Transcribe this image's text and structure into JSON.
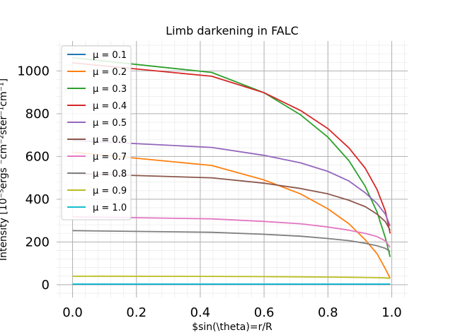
{
  "chart_data": {
    "type": "line",
    "title": "Limb darkening in FALC",
    "xlabel": "$sin(\\theta)=r/R",
    "ylabel": "Intensity [10⁻⁵ergs ⁻cm⁻²ster⁻¹cm⁻¹]",
    "xlim": [
      -0.05,
      1.05
    ],
    "ylim": [
      -60,
      1140
    ],
    "xticks": [
      "0.0",
      "0.2",
      "0.4",
      "0.6",
      "0.8",
      "1.0"
    ],
    "yticks": [
      "0",
      "200",
      "400",
      "600",
      "800",
      "1000"
    ],
    "grid": true,
    "minor_grid": true,
    "legend_position": "upper-left",
    "x": [
      0.0,
      0.436,
      0.6,
      0.714,
      0.8,
      0.866,
      0.917,
      0.954,
      0.98,
      0.995
    ],
    "series": [
      {
        "name": "μ = 0.1",
        "color": "#1f77b4",
        "values": [
          2,
          2,
          2,
          2,
          2,
          2,
          2,
          2,
          2,
          2
        ]
      },
      {
        "name": "μ = 0.2",
        "color": "#ff7f0e",
        "values": [
          620,
          558,
          490,
          425,
          355,
          285,
          210,
          145,
          75,
          30
        ]
      },
      {
        "name": "μ = 0.3",
        "color": "#2ca02c",
        "values": [
          1062,
          993,
          898,
          795,
          690,
          580,
          460,
          340,
          220,
          130
        ]
      },
      {
        "name": "μ = 0.4",
        "color": "#d62728",
        "values": [
          1038,
          975,
          898,
          815,
          730,
          640,
          545,
          445,
          345,
          240
        ]
      },
      {
        "name": "μ = 0.5",
        "color": "#9467bd",
        "values": [
          675,
          642,
          605,
          570,
          530,
          485,
          430,
          380,
          330,
          275
        ]
      },
      {
        "name": "μ = 0.6",
        "color": "#8c564b",
        "values": [
          520,
          500,
          475,
          450,
          425,
          395,
          365,
          330,
          295,
          255
        ]
      },
      {
        "name": "μ = 0.7",
        "color": "#e377c2",
        "values": [
          318,
          308,
          296,
          285,
          270,
          255,
          240,
          225,
          205,
          175
        ]
      },
      {
        "name": "μ = 0.8",
        "color": "#7f7f7f",
        "values": [
          253,
          245,
          236,
          227,
          216,
          206,
          194,
          182,
          170,
          155
        ]
      },
      {
        "name": "μ = 0.9",
        "color": "#bcbd22",
        "values": [
          40,
          39,
          38,
          37,
          36,
          35,
          34,
          33,
          32,
          30
        ]
      },
      {
        "name": "μ = 1.0",
        "color": "#17becf",
        "values": [
          3,
          3,
          3,
          3,
          3,
          3,
          3,
          3,
          3,
          3
        ]
      }
    ]
  }
}
